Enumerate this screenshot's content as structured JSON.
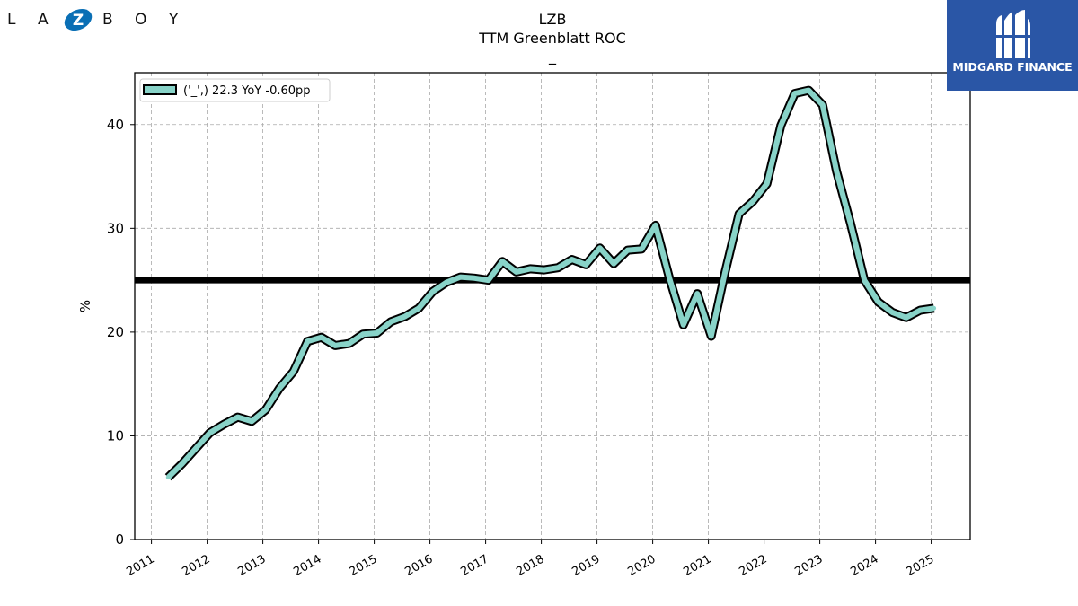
{
  "logo_left": {
    "letters": [
      "L",
      "A",
      "Z",
      "B",
      "O",
      "Y"
    ],
    "icon": "lazboy-z-emblem",
    "accent": "#0a6fb5"
  },
  "logo_right": {
    "brand": "MIDGARD FINANCE",
    "icon": "midgard-m-emblem",
    "background": "#2a56a6"
  },
  "chart_data": {
    "type": "line",
    "title": "LZB",
    "subtitle": "TTM Greenblatt ROC",
    "subsubtitle": "_",
    "xlabel": "",
    "ylabel": "%",
    "xlim": [
      2010.7,
      2025.7
    ],
    "ylim": [
      0,
      45
    ],
    "xticks": [
      "2011",
      "2012",
      "2013",
      "2014",
      "2015",
      "2016",
      "2017",
      "2018",
      "2019",
      "2020",
      "2021",
      "2022",
      "2023",
      "2024",
      "2025"
    ],
    "yticks": [
      "0",
      "10",
      "20",
      "30",
      "40"
    ],
    "grid": true,
    "legend": {
      "placement": "top-left",
      "entries": [
        "('_',) 22.3 YoY -0.60pp"
      ]
    },
    "series": [
      {
        "name": "('_',) 22.3 YoY -0.60pp",
        "color": "#88d3c8",
        "edge_color": "#000000",
        "x": [
          2011.3,
          2011.55,
          2011.8,
          2012.05,
          2012.3,
          2012.55,
          2012.8,
          2013.05,
          2013.3,
          2013.55,
          2013.8,
          2014.05,
          2014.3,
          2014.55,
          2014.8,
          2015.05,
          2015.3,
          2015.55,
          2015.8,
          2016.05,
          2016.3,
          2016.55,
          2016.8,
          2017.05,
          2017.3,
          2017.55,
          2017.8,
          2018.05,
          2018.3,
          2018.55,
          2018.8,
          2019.05,
          2019.3,
          2019.55,
          2019.8,
          2020.05,
          2020.3,
          2020.55,
          2020.8,
          2021.05,
          2021.3,
          2021.55,
          2021.8,
          2022.05,
          2022.3,
          2022.55,
          2022.8,
          2023.05,
          2023.3,
          2023.55,
          2023.8,
          2024.05,
          2024.3,
          2024.55,
          2024.8,
          2025.05
        ],
        "y": [
          6.0,
          7.3,
          8.8,
          10.3,
          11.1,
          11.8,
          11.4,
          12.5,
          14.6,
          16.2,
          19.1,
          19.5,
          18.7,
          18.9,
          19.8,
          19.9,
          21.0,
          21.5,
          22.3,
          23.9,
          24.8,
          25.3,
          25.2,
          25.0,
          26.8,
          25.8,
          26.1,
          26.0,
          26.2,
          27.0,
          26.5,
          28.1,
          26.6,
          27.9,
          28.0,
          30.3,
          25.2,
          20.7,
          23.7,
          19.6,
          25.8,
          31.4,
          32.6,
          34.3,
          39.9,
          43.0,
          43.3,
          41.9,
          35.5,
          30.5,
          25.0,
          22.9,
          21.9,
          21.4,
          22.1,
          22.3
        ]
      }
    ],
    "reference_line": {
      "y": 25.0,
      "color": "#000000"
    }
  }
}
